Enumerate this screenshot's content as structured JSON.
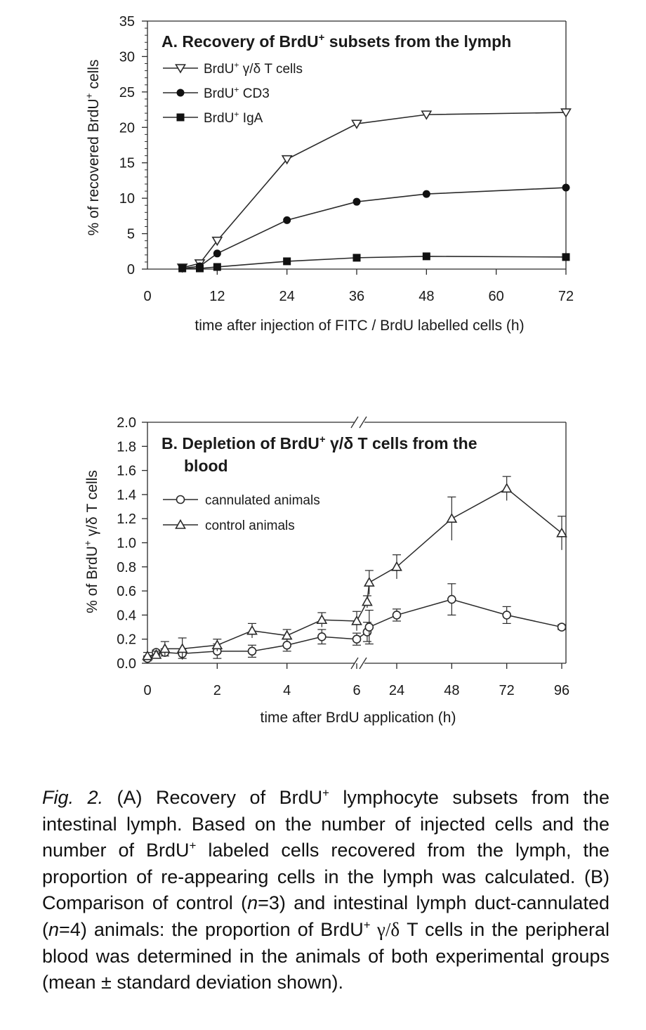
{
  "chart_data": [
    {
      "type": "line",
      "title": {
        "text": "A. Recovery of BrdU",
        "sup": "+",
        "rest": " subsets from the lymph"
      },
      "xlabel": "time after injection of FITC / BrdU labelled cells (h)",
      "ylabel": {
        "pre": "% of recovered BrdU",
        "sup": "+",
        "post": " cells"
      },
      "xlim": [
        0,
        72
      ],
      "ylim": [
        0,
        35
      ],
      "x_ticks": [
        0,
        12,
        24,
        36,
        48,
        60,
        72
      ],
      "y_ticks": [
        0,
        5,
        10,
        15,
        20,
        25,
        30,
        35
      ],
      "legend_position": "top-left",
      "series": [
        {
          "name": {
            "pre": "BrdU",
            "sup": "+",
            "post": " γ/δ T cells"
          },
          "marker": "triangle-down-open",
          "x": [
            6,
            9,
            12,
            24,
            36,
            48,
            72
          ],
          "y": [
            0.2,
            0.8,
            4.0,
            15.5,
            20.5,
            21.8,
            22.1
          ]
        },
        {
          "name": {
            "pre": "BrdU",
            "sup": "+",
            "post": " CD3"
          },
          "marker": "circle-filled",
          "x": [
            6,
            9,
            12,
            24,
            36,
            48,
            72
          ],
          "y": [
            0.1,
            0.4,
            2.2,
            6.9,
            9.5,
            10.6,
            11.5
          ]
        },
        {
          "name": {
            "pre": "BrdU",
            "sup": "+",
            "post": " IgA"
          },
          "marker": "square-filled",
          "x": [
            6,
            9,
            12,
            24,
            36,
            48,
            72
          ],
          "y": [
            0.1,
            0.1,
            0.3,
            1.1,
            1.6,
            1.8,
            1.7
          ]
        }
      ]
    },
    {
      "type": "line",
      "title": {
        "text": "B. Depletion of BrdU",
        "sup": "+",
        "rest": " γ/δ T cells from the",
        "line2": "blood"
      },
      "xlabel": "time after BrdU application (h)",
      "ylabel": {
        "pre": "% of BrdU",
        "sup": "+",
        "post": " γ/δ T cells"
      },
      "ylim": [
        0,
        2.0
      ],
      "x_axis_break": "between 6 and 24 h",
      "x_ticks": [
        0,
        2,
        4,
        6,
        24,
        48,
        72,
        96
      ],
      "y_ticks": [
        "0.0",
        "0.2",
        "0.4",
        "0.6",
        "0.8",
        "1.0",
        "1.2",
        "1.4",
        "1.6",
        "1.8",
        "2.0"
      ],
      "legend_position": "upper-left",
      "series": [
        {
          "name": "cannulated animals",
          "marker": "circle-open",
          "x": [
            0,
            0.25,
            0.5,
            1,
            2,
            3,
            4,
            5,
            6,
            6.3,
            12,
            24,
            48,
            72,
            96
          ],
          "y": [
            0.04,
            0.09,
            0.09,
            0.08,
            0.1,
            0.1,
            0.15,
            0.22,
            0.2,
            0.26,
            0.3,
            0.4,
            0.53,
            0.4,
            0.3
          ],
          "error": [
            0.02,
            0.02,
            0.03,
            0.04,
            0.06,
            0.05,
            0.05,
            0.06,
            0.05,
            0.08,
            0.14,
            0.05,
            0.13,
            0.07,
            0.02
          ]
        },
        {
          "name": "control animals",
          "marker": "triangle-up-open",
          "x": [
            0,
            0.25,
            0.5,
            1,
            2,
            3,
            4,
            5,
            6,
            6.3,
            12,
            24,
            48,
            72,
            96
          ],
          "y": [
            0.06,
            0.07,
            0.12,
            0.12,
            0.15,
            0.27,
            0.23,
            0.36,
            0.35,
            0.51,
            0.67,
            0.8,
            1.2,
            1.45,
            1.08
          ],
          "error": [
            0.03,
            0.03,
            0.06,
            0.09,
            0.05,
            0.06,
            0.05,
            0.06,
            0.08,
            0.05,
            0.1,
            0.1,
            0.18,
            0.1,
            0.14
          ]
        }
      ]
    }
  ],
  "caption": {
    "lead": "Fig. 2.",
    "t1": " (A) Recovery of BrdU",
    "s1": "+",
    "t2": " lymphocyte subsets from the intestinal lymph. Based on the number of injected cells and the number of BrdU",
    "s2": "+",
    "t3": " labeled cells recovered from the lymph, the proportion of re-appearing cells in the lymph was calculated. (B) Comparison of control (",
    "n1": "n",
    "t4": "=3) and intestinal lymph duct-cannulated (",
    "n2": "n",
    "t5": "=4) animals: the proportion of BrdU",
    "s3": "+",
    "greek": " γ/δ",
    "t6": " T cells in the peripheral blood was determined in the animals of both experimental groups (mean ± standard deviation shown)."
  }
}
